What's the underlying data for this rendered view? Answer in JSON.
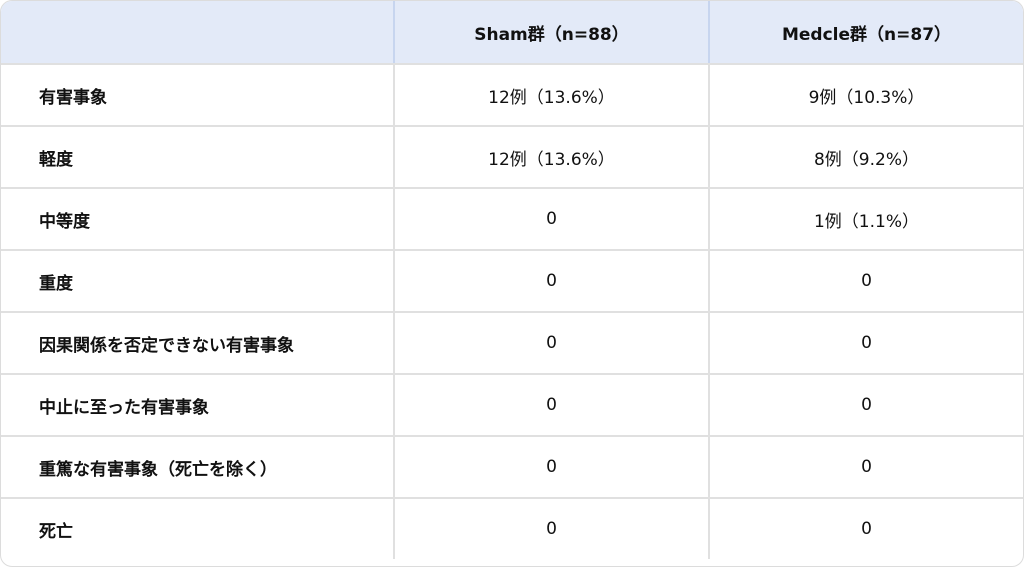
{
  "table": {
    "headers": [
      "",
      "Sham群（n=88）",
      "Medcle群（n=87）"
    ],
    "rows": [
      [
        "有害事象",
        "12例（13.6%）",
        "9例（10.3%）"
      ],
      [
        "軽度",
        "12例（13.6%）",
        "8例（9.2%）"
      ],
      [
        "中等度",
        "0",
        "1例（1.1%）"
      ],
      [
        "重度",
        "0",
        "0"
      ],
      [
        "因果関係を否定できない有害事象",
        "0",
        "0"
      ],
      [
        "中止に至った有害事象",
        "0",
        "0"
      ],
      [
        "重篤な有害事象（死亡を除く）",
        "0",
        "0"
      ],
      [
        "死亡",
        "0",
        "0"
      ]
    ],
    "header_color": "#e3eaf8"
  }
}
